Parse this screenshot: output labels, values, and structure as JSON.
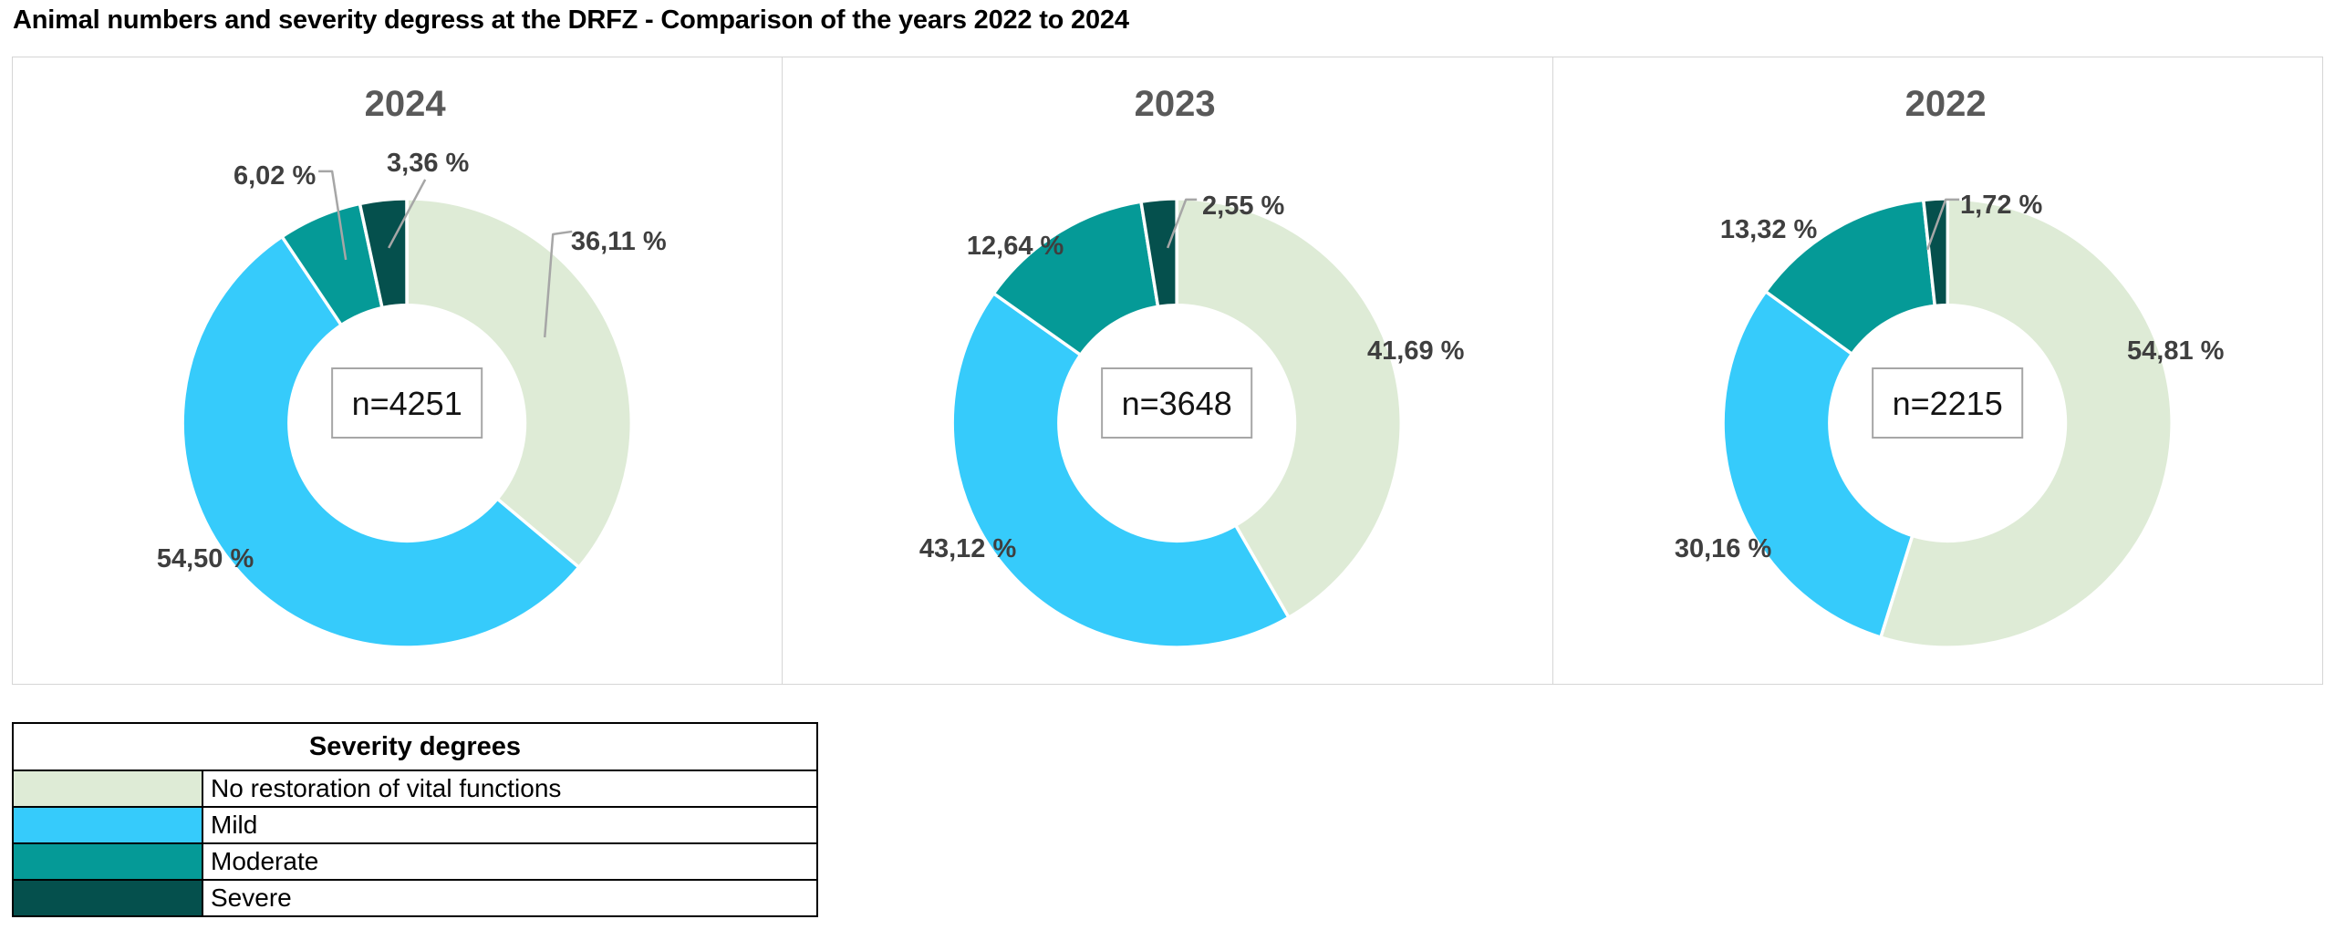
{
  "page_title": "Animal numbers and severity degress at the DRFZ - Comparison of the years 2022 to 2024",
  "palette": {
    "no_restoration_of_vital_functions": "#DEEBD6",
    "mild": "#36CBFB",
    "moderate": "#059A97",
    "severe": "#05504D"
  },
  "ui_colors": {
    "year_title": "#595959",
    "percent_label": "#3F3F3F",
    "leader_line": "#A6A6A6",
    "panel_border": "#D5D5D5",
    "center_box_border": "#A6A6A6",
    "center_text": "#141414",
    "table_border": "#000000"
  },
  "legend": {
    "title": "Severity degrees",
    "items": [
      {
        "label": "No restoration of vital functions",
        "color_key": "no_restoration_of_vital_functions"
      },
      {
        "label": "Mild",
        "color_key": "mild"
      },
      {
        "label": "Moderate",
        "color_key": "moderate"
      },
      {
        "label": "Severe",
        "color_key": "severe"
      }
    ]
  },
  "chart_data": [
    {
      "type": "pie",
      "subtype": "donut",
      "title": "2024",
      "center_label": "n=4251",
      "total_n": 4251,
      "categories": [
        "No restoration of vital functions",
        "Mild",
        "Moderate",
        "Severe"
      ],
      "values": [
        36.11,
        54.5,
        6.02,
        3.36
      ],
      "value_labels": [
        "36,11 %",
        "54,50 %",
        "6,02 %",
        "3,36 %"
      ],
      "start_angle_deg": 0,
      "direction": "clockwise",
      "legend_position": "none"
    },
    {
      "type": "pie",
      "subtype": "donut",
      "title": "2023",
      "center_label": "n=3648",
      "total_n": 3648,
      "categories": [
        "No restoration of vital functions",
        "Mild",
        "Moderate",
        "Severe"
      ],
      "values": [
        41.69,
        43.12,
        12.64,
        2.55
      ],
      "value_labels": [
        "41,69 %",
        "43,12 %",
        "12,64 %",
        "2,55 %"
      ],
      "start_angle_deg": 0,
      "direction": "clockwise",
      "legend_position": "none"
    },
    {
      "type": "pie",
      "subtype": "donut",
      "title": "2022",
      "center_label": "n=2215",
      "total_n": 2215,
      "categories": [
        "No restoration of vital functions",
        "Mild",
        "Moderate",
        "Severe"
      ],
      "values": [
        54.81,
        30.16,
        13.32,
        1.72
      ],
      "value_labels": [
        "54,81 %",
        "30,16 %",
        "13,32 %",
        "1,72 %"
      ],
      "start_angle_deg": 0,
      "direction": "clockwise",
      "legend_position": "none"
    }
  ]
}
